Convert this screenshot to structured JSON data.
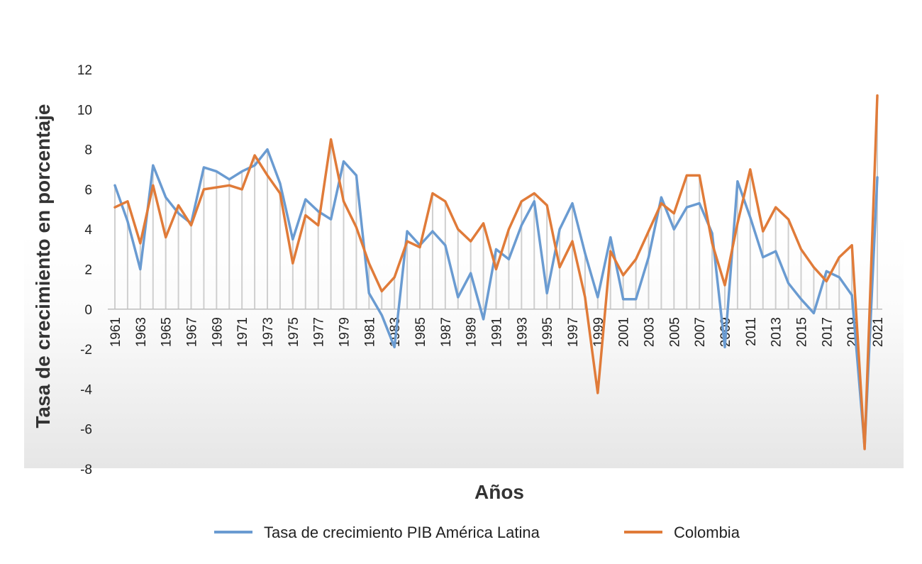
{
  "chart_data": {
    "type": "line",
    "title": "",
    "xlabel": "Años",
    "ylabel": "Tasa de crecimiento en porcentaje",
    "ylim": [
      -8,
      12
    ],
    "y_ticks": [
      -8,
      -6,
      -4,
      -2,
      0,
      2,
      4,
      6,
      8,
      10,
      12
    ],
    "x": [
      1961,
      1962,
      1963,
      1964,
      1965,
      1966,
      1967,
      1968,
      1969,
      1970,
      1971,
      1972,
      1973,
      1974,
      1975,
      1976,
      1977,
      1978,
      1979,
      1980,
      1981,
      1982,
      1983,
      1984,
      1985,
      1986,
      1987,
      1988,
      1989,
      1990,
      1991,
      1992,
      1993,
      1994,
      1995,
      1996,
      1997,
      1998,
      1999,
      2000,
      2001,
      2002,
      2003,
      2004,
      2005,
      2006,
      2007,
      2008,
      2009,
      2010,
      2011,
      2012,
      2013,
      2014,
      2015,
      2016,
      2017,
      2018,
      2019,
      2020,
      2021
    ],
    "x_tick_labels": [
      "1961",
      "1963",
      "1965",
      "1967",
      "1969",
      "1971",
      "1973",
      "1975",
      "1977",
      "1979",
      "1981",
      "1983",
      "1985",
      "1987",
      "1989",
      "1991",
      "1993",
      "1995",
      "1997",
      "1999",
      "2001",
      "2003",
      "2005",
      "2007",
      "2009",
      "2011",
      "2013",
      "2015",
      "2017",
      "2019",
      "2021"
    ],
    "vertical_drop_lines": true,
    "legend_position": "bottom",
    "series": [
      {
        "name": "Tasa de crecimiento PIB América Latina",
        "color": "#6a9bd1",
        "values": [
          6.2,
          4.4,
          2.0,
          7.2,
          5.6,
          4.8,
          4.3,
          7.1,
          6.9,
          6.5,
          6.9,
          7.2,
          8.0,
          6.3,
          3.5,
          5.5,
          4.9,
          4.5,
          7.4,
          6.7,
          0.8,
          -0.3,
          -1.9,
          3.9,
          3.2,
          3.9,
          3.2,
          0.6,
          1.8,
          -0.5,
          3.0,
          2.5,
          4.2,
          5.4,
          0.8,
          4.0,
          5.3,
          2.8,
          0.6,
          3.6,
          0.5,
          0.5,
          2.6,
          5.6,
          4.0,
          5.1,
          5.3,
          3.8,
          -1.9,
          6.4,
          4.6,
          2.6,
          2.9,
          1.3,
          0.5,
          -0.2,
          1.9,
          1.6,
          0.7,
          -6.9,
          6.6
        ]
      },
      {
        "name": "Colombia",
        "color": "#e07b39",
        "values": [
          5.1,
          5.4,
          3.3,
          6.2,
          3.6,
          5.2,
          4.2,
          6.0,
          6.1,
          6.2,
          6.0,
          7.7,
          6.7,
          5.8,
          2.3,
          4.7,
          4.2,
          8.5,
          5.4,
          4.1,
          2.3,
          0.9,
          1.6,
          3.4,
          3.1,
          5.8,
          5.4,
          4.0,
          3.4,
          4.3,
          2.0,
          4.0,
          5.4,
          5.8,
          5.2,
          2.1,
          3.4,
          0.6,
          -4.2,
          2.9,
          1.7,
          2.5,
          3.9,
          5.3,
          4.8,
          6.7,
          6.7,
          3.3,
          1.2,
          4.3,
          7.0,
          3.9,
          5.1,
          4.5,
          3.0,
          2.1,
          1.4,
          2.6,
          3.2,
          -7.0,
          10.7
        ]
      }
    ]
  }
}
